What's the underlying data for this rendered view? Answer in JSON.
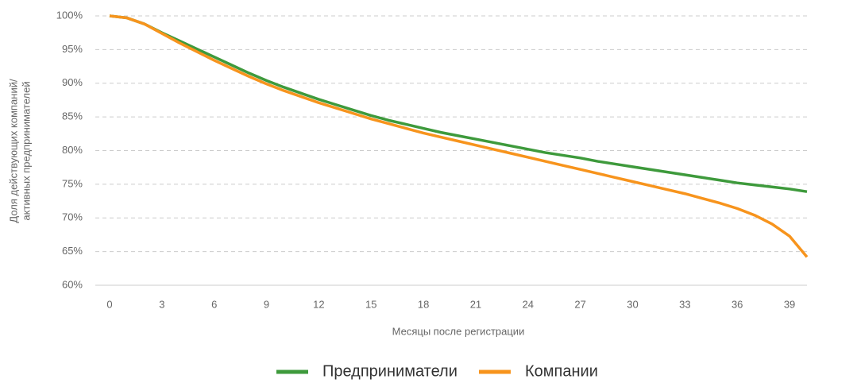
{
  "chart_data": {
    "type": "line",
    "ylabel": [
      "Доля действующих компаний/",
      "активных предпринимателей"
    ],
    "xlabel": "Месяцы после регистрации",
    "x": [
      0,
      1,
      2,
      3,
      4,
      5,
      6,
      7,
      8,
      9,
      10,
      11,
      12,
      13,
      14,
      15,
      16,
      17,
      18,
      19,
      20,
      21,
      22,
      23,
      24,
      25,
      26,
      27,
      28,
      29,
      30,
      31,
      32,
      33,
      34,
      35,
      36,
      37,
      38,
      39,
      40
    ],
    "series": [
      {
        "name": "Предприниматели",
        "color": "#3e9a3c",
        "values": [
          100,
          99.7,
          98.8,
          97.5,
          96.3,
          95.1,
          93.9,
          92.7,
          91.5,
          90.4,
          89.4,
          88.5,
          87.6,
          86.8,
          86.0,
          85.2,
          84.5,
          83.9,
          83.3,
          82.7,
          82.2,
          81.7,
          81.2,
          80.7,
          80.2,
          79.7,
          79.3,
          78.9,
          78.4,
          78.0,
          77.6,
          77.2,
          76.8,
          76.4,
          76.0,
          75.6,
          75.2,
          74.9,
          74.6,
          74.3,
          73.9
        ]
      },
      {
        "name": "Компании",
        "color": "#f7941d",
        "values": [
          100,
          99.7,
          98.8,
          97.4,
          96.0,
          94.7,
          93.4,
          92.2,
          91.0,
          89.9,
          88.9,
          88.0,
          87.1,
          86.3,
          85.5,
          84.7,
          84.0,
          83.3,
          82.6,
          82.0,
          81.4,
          80.8,
          80.2,
          79.6,
          79.0,
          78.4,
          77.8,
          77.2,
          76.6,
          76.0,
          75.4,
          74.8,
          74.2,
          73.6,
          72.9,
          72.2,
          71.4,
          70.4,
          69.1,
          67.3,
          64.2
        ]
      }
    ],
    "xlim": [
      0,
      40
    ],
    "xticks": [
      0,
      3,
      6,
      9,
      12,
      15,
      18,
      21,
      24,
      27,
      30,
      33,
      36,
      39
    ],
    "ylim": [
      60,
      100
    ],
    "yticks": [
      {
        "value": 60,
        "label": "60%"
      },
      {
        "value": 65,
        "label": "65%"
      },
      {
        "value": 70,
        "label": "70%"
      },
      {
        "value": 75,
        "label": "75%"
      },
      {
        "value": 80,
        "label": "80%"
      },
      {
        "value": 85,
        "label": "85%"
      },
      {
        "value": 90,
        "label": "90%"
      },
      {
        "value": 95,
        "label": "95%"
      },
      {
        "value": 100,
        "label": "100%"
      }
    ],
    "grid": true,
    "legend": "bottom"
  }
}
